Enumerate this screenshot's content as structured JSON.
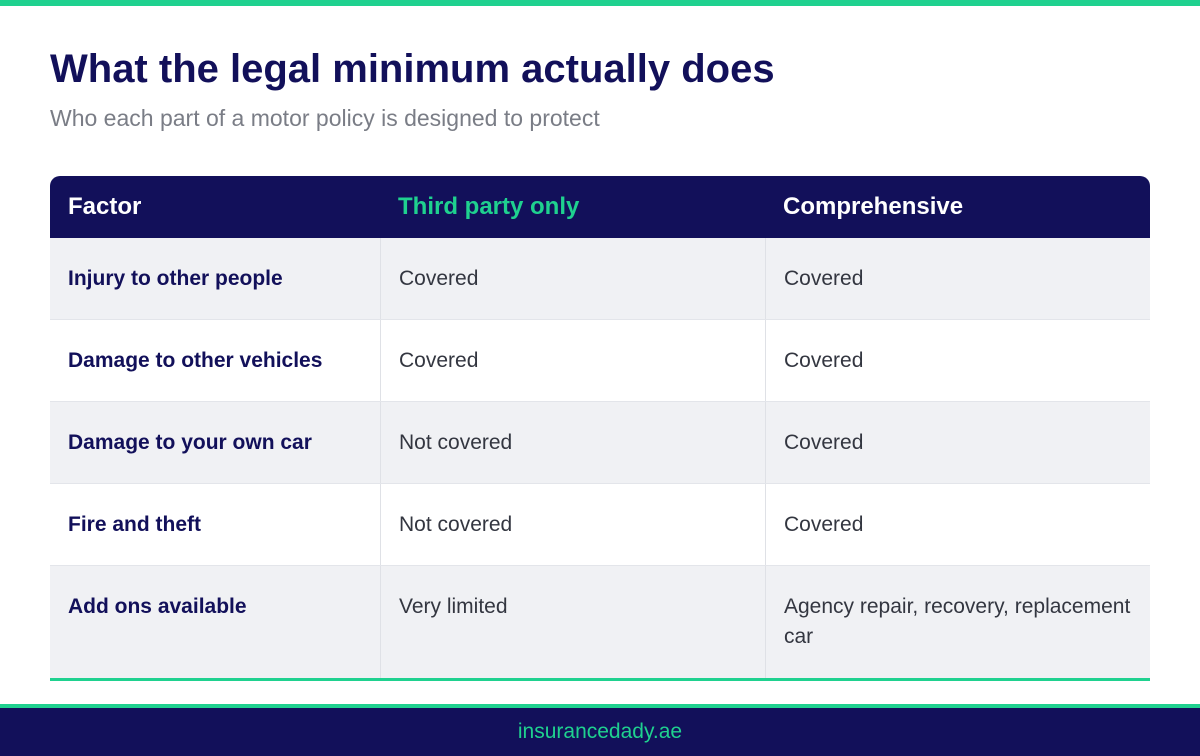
{
  "title": "What the legal minimum actually does",
  "subtitle": "Who each part of a motor policy is designed to protect",
  "colors": {
    "navy": "#12105a",
    "green_accent": "#1fd18f",
    "row_shade": "#f0f1f4",
    "subtitle_gray": "#7a7d86"
  },
  "table": {
    "headers": [
      "Factor",
      "Third party only",
      "Comprehensive"
    ],
    "rows": [
      [
        "Injury to other people",
        "Covered",
        "Covered"
      ],
      [
        "Damage to other vehicles",
        "Covered",
        "Covered"
      ],
      [
        "Damage to your own car",
        "Not covered",
        "Covered"
      ],
      [
        "Fire and theft",
        "Not covered",
        "Covered"
      ],
      [
        "Add ons available",
        "Very limited",
        "Agency repair, recovery, replacement car"
      ]
    ]
  },
  "footer": {
    "site": "insurancedady.ae"
  }
}
